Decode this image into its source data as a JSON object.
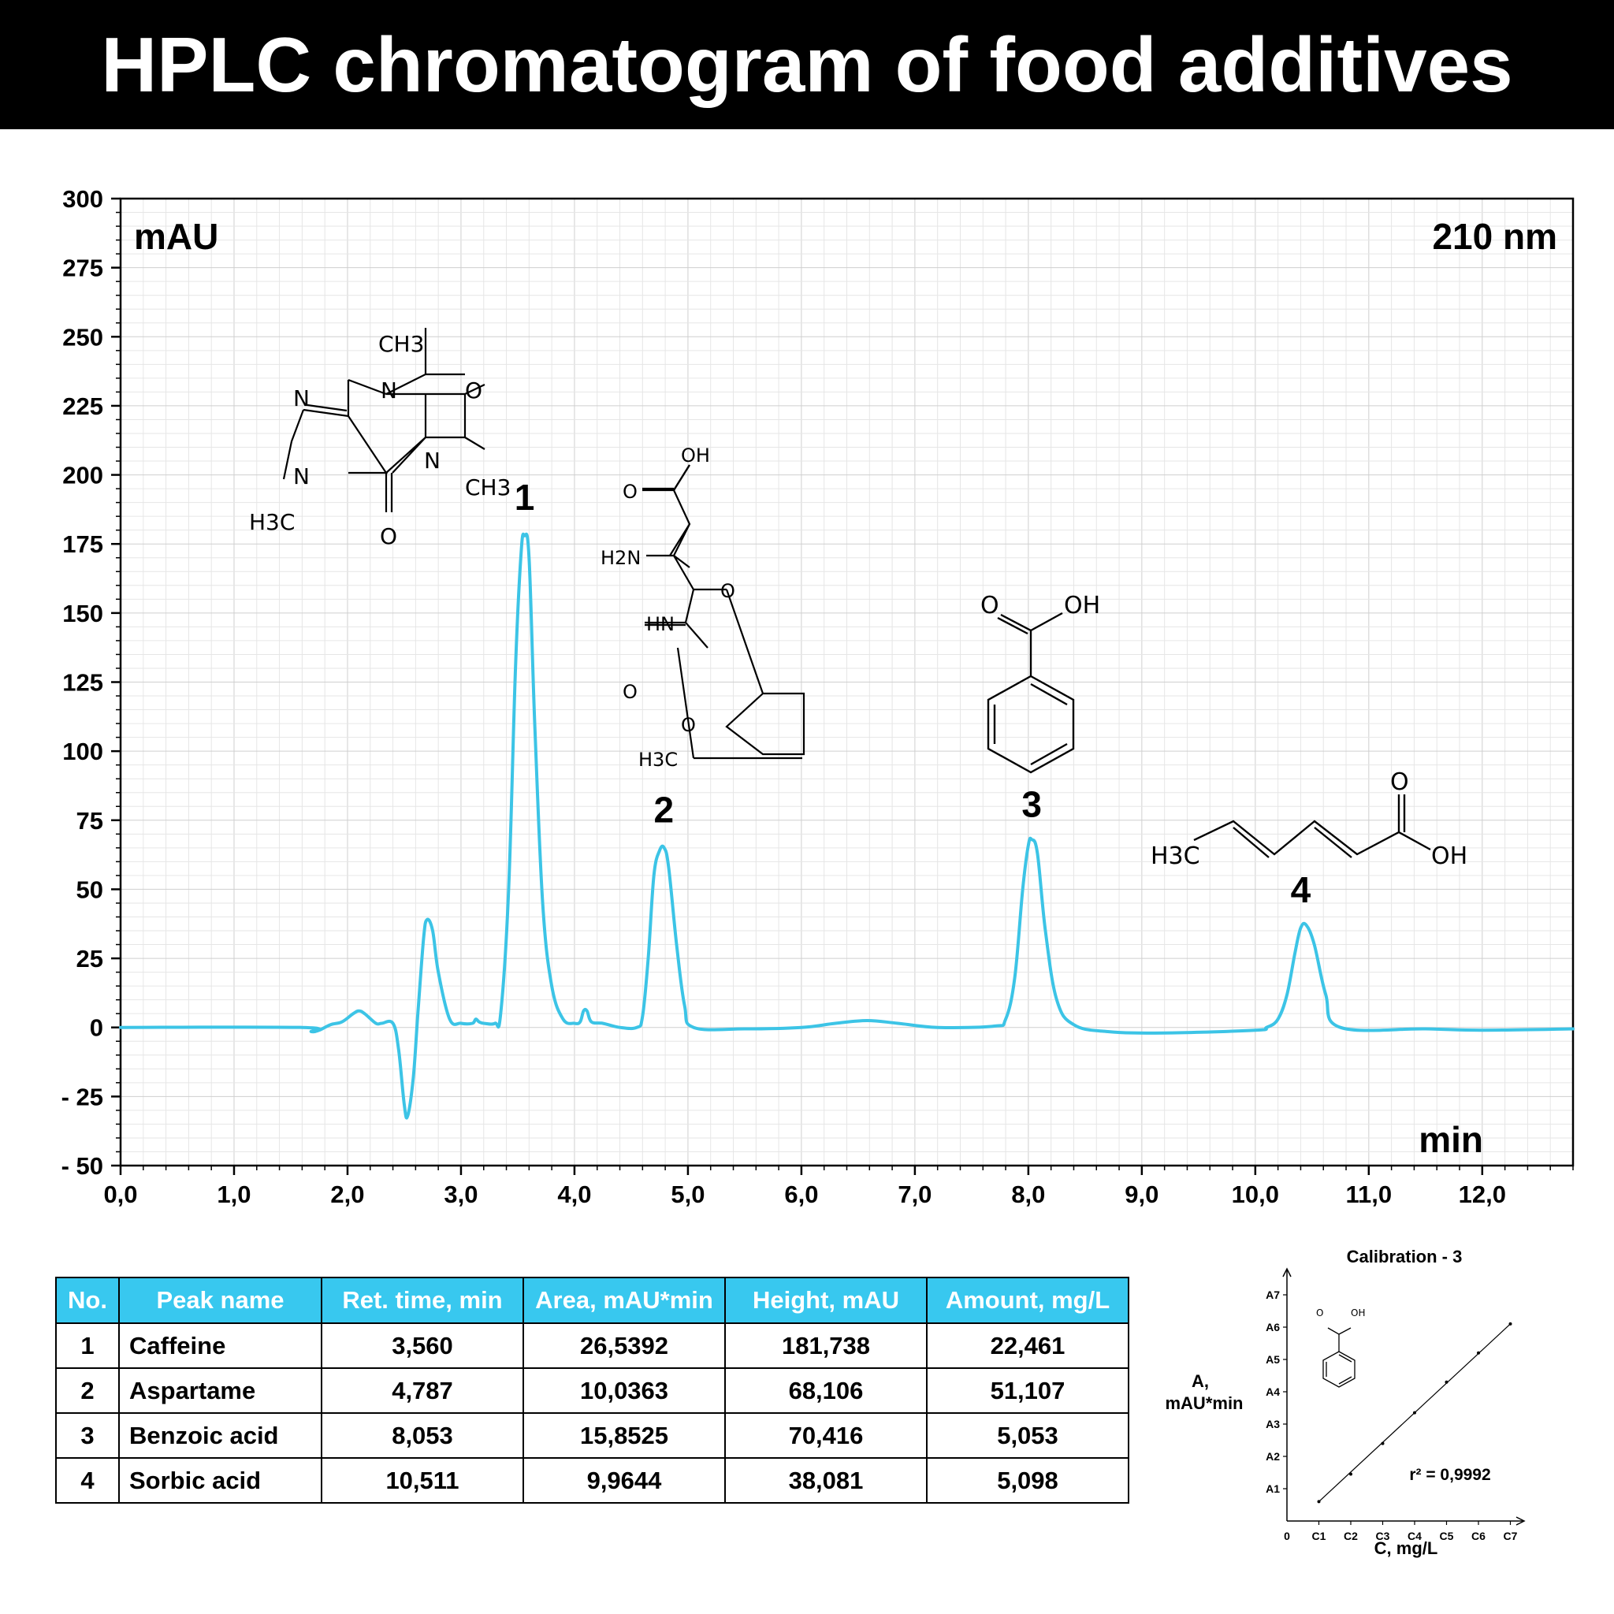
{
  "title": "HPLC chromatogram of food additives",
  "chart_data": [
    {
      "type": "line",
      "y_unit_label": "mAU",
      "wavelength_label": "210 nm",
      "x_unit_label": "min",
      "xlim": [
        0,
        12.8
      ],
      "ylim": [
        -50,
        300
      ],
      "x_ticks": [
        0,
        1,
        2,
        3,
        4,
        5,
        6,
        7,
        8,
        9,
        10,
        11,
        12
      ],
      "x_tick_labels": [
        "0,0",
        "1,0",
        "2,0",
        "3,0",
        "4,0",
        "5,0",
        "6,0",
        "7,0",
        "8,0",
        "9,0",
        "10,0",
        "11,0",
        "12,0"
      ],
      "y_ticks": [
        300,
        275,
        250,
        225,
        200,
        175,
        150,
        125,
        100,
        75,
        50,
        25,
        0,
        -25,
        -50
      ],
      "y_tick_labels": [
        "300",
        "275",
        "250",
        "225",
        "200",
        "175",
        "150",
        "125",
        "100",
        "75",
        "50",
        "25",
        "0",
        "- 25",
        "- 50"
      ],
      "grid": true,
      "line_color": "#3cc4e6",
      "series": [
        {
          "x": [
            0,
            1.6,
            1.68,
            1.75,
            1.85,
            1.95,
            2.05,
            2.1,
            2.15,
            2.25,
            2.3,
            2.4,
            2.45,
            2.5,
            2.53,
            2.58,
            2.62,
            2.67,
            2.7,
            2.75,
            2.8,
            2.9,
            3.0,
            3.1,
            3.13,
            3.16,
            3.2,
            3.3,
            3.35,
            3.42,
            3.48,
            3.53,
            3.56,
            3.6,
            3.65,
            3.72,
            3.8,
            3.9,
            4.0,
            4.05,
            4.08,
            4.11,
            4.15,
            4.25,
            4.4,
            4.55,
            4.6,
            4.65,
            4.7,
            4.75,
            4.79,
            4.83,
            4.9,
            4.97,
            5.05,
            5.5,
            6.0,
            6.3,
            6.58,
            6.85,
            7.2,
            7.7,
            7.8,
            7.88,
            7.95,
            8.0,
            8.03,
            8.08,
            8.15,
            8.25,
            8.4,
            8.7,
            9.2,
            10.0,
            10.1,
            10.2,
            10.28,
            10.35,
            10.4,
            10.45,
            10.52,
            10.62,
            10.75,
            11.5,
            12.0,
            12.8
          ],
          "y": [
            0,
            0,
            -1.5,
            -1,
            1,
            2,
            5,
            6,
            5,
            1.5,
            1.5,
            1.5,
            -8,
            -28,
            -32,
            -18,
            5,
            32,
            39,
            35,
            20,
            3,
            1.5,
            1.5,
            3,
            2,
            1.5,
            1.5,
            5,
            50,
            130,
            172,
            178,
            170,
            110,
            45,
            15,
            3,
            1.5,
            2,
            6,
            6,
            2,
            1.5,
            0,
            0,
            4,
            25,
            55,
            64,
            65,
            58,
            30,
            8,
            0,
            -0.5,
            0,
            1.5,
            2.5,
            1.5,
            0,
            0.5,
            3,
            18,
            50,
            66,
            68,
            63,
            35,
            10,
            1,
            -1.5,
            -2,
            -1,
            0,
            3,
            12,
            27,
            36,
            37,
            30,
            12,
            0,
            -0.5,
            -1,
            -0.5
          ]
        }
      ],
      "annotations": [
        {
          "text": "1",
          "x": 3.56,
          "y": 181
        },
        {
          "text": "2",
          "x": 4.787,
          "y": 68
        },
        {
          "text": "3",
          "x": 8.03,
          "y": 70
        },
        {
          "text": "4",
          "x": 10.4,
          "y": 39
        }
      ]
    },
    {
      "type": "line",
      "title": "Calibration - 3",
      "xlabel": "C, mg/L",
      "ylabel_line1": "A,",
      "ylabel_line2": "mAU*min",
      "x_tick_labels": [
        "0",
        "C1",
        "C2",
        "C3",
        "C4",
        "C5",
        "C6",
        "C7"
      ],
      "y_tick_labels": [
        "A1",
        "A2",
        "A3",
        "A4",
        "A5",
        "A6",
        "A7"
      ],
      "annotation": "r² = 0,9992",
      "series": [
        {
          "x": [
            1,
            2,
            3,
            4,
            5,
            6,
            7
          ],
          "y": [
            0.6,
            1.45,
            2.4,
            3.35,
            4.3,
            5.2,
            6.1
          ]
        }
      ]
    }
  ],
  "molecules": {
    "caffeine": [
      "CH3",
      "N",
      "O",
      "N",
      "N",
      "CH3",
      "N",
      "H3C",
      "O"
    ],
    "aspartame": [
      "OH",
      "O",
      "H2N",
      "O",
      "HN",
      "O",
      "O",
      "H3C"
    ],
    "benzoic": [
      "O",
      "OH"
    ],
    "sorbic": [
      "O",
      "H3C",
      "OH"
    ]
  },
  "table": {
    "headers": [
      "No.",
      "Peak name",
      "Ret. time, min",
      "Area, mAU*min",
      "Height, mAU",
      "Amount, mg/L"
    ],
    "rows": [
      [
        "1",
        "Caffeine",
        "3,560",
        "26,5392",
        "181,738",
        "22,461"
      ],
      [
        "2",
        "Aspartame",
        "4,787",
        "10,0363",
        "68,106",
        "51,107"
      ],
      [
        "3",
        "Benzoic acid",
        "8,053",
        "15,8525",
        "70,416",
        "5,053"
      ],
      [
        "4",
        "Sorbic acid",
        "10,511",
        "9,9644",
        "38,081",
        "5,098"
      ]
    ]
  }
}
